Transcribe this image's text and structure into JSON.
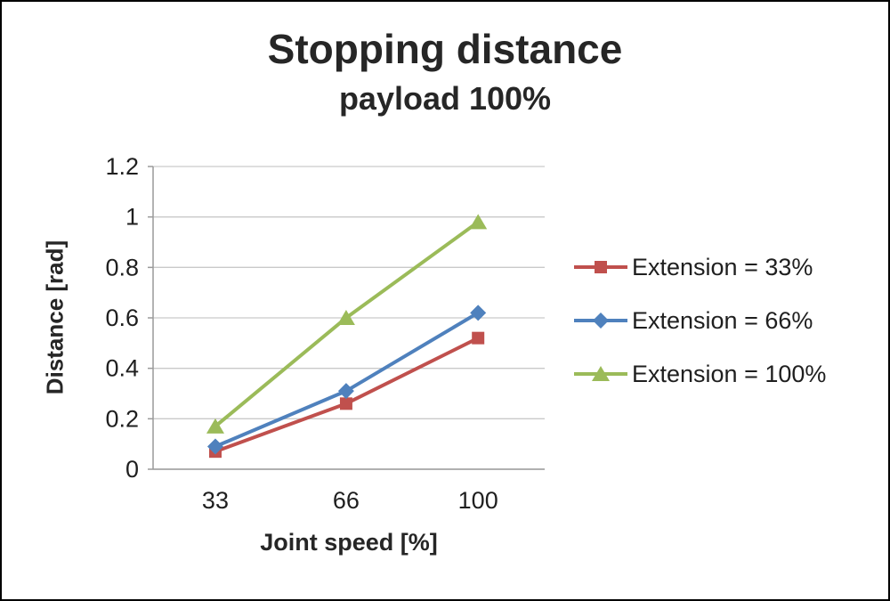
{
  "title": "Stopping distance",
  "subtitle": "payload 100%",
  "chart_data": {
    "type": "line",
    "title": "Stopping distance",
    "subtitle": "payload 100%",
    "xlabel": "Joint speed [%]",
    "ylabel": "Distance [rad]",
    "x": [
      33,
      66,
      100
    ],
    "ylim": [
      0,
      1.2
    ],
    "yticks": [
      0,
      0.2,
      0.4,
      0.6,
      0.8,
      1,
      1.2
    ],
    "grid": true,
    "legend_position": "right",
    "series": [
      {
        "name": "Extension = 33%",
        "color": "#c0504d",
        "marker": "square",
        "values": [
          0.07,
          0.26,
          0.52
        ]
      },
      {
        "name": "Extension = 66%",
        "color": "#4f81bd",
        "marker": "diamond",
        "values": [
          0.09,
          0.31,
          0.62
        ]
      },
      {
        "name": "Extension = 100%",
        "color": "#9bbb59",
        "marker": "triangle",
        "values": [
          0.17,
          0.6,
          0.98
        ]
      }
    ]
  }
}
